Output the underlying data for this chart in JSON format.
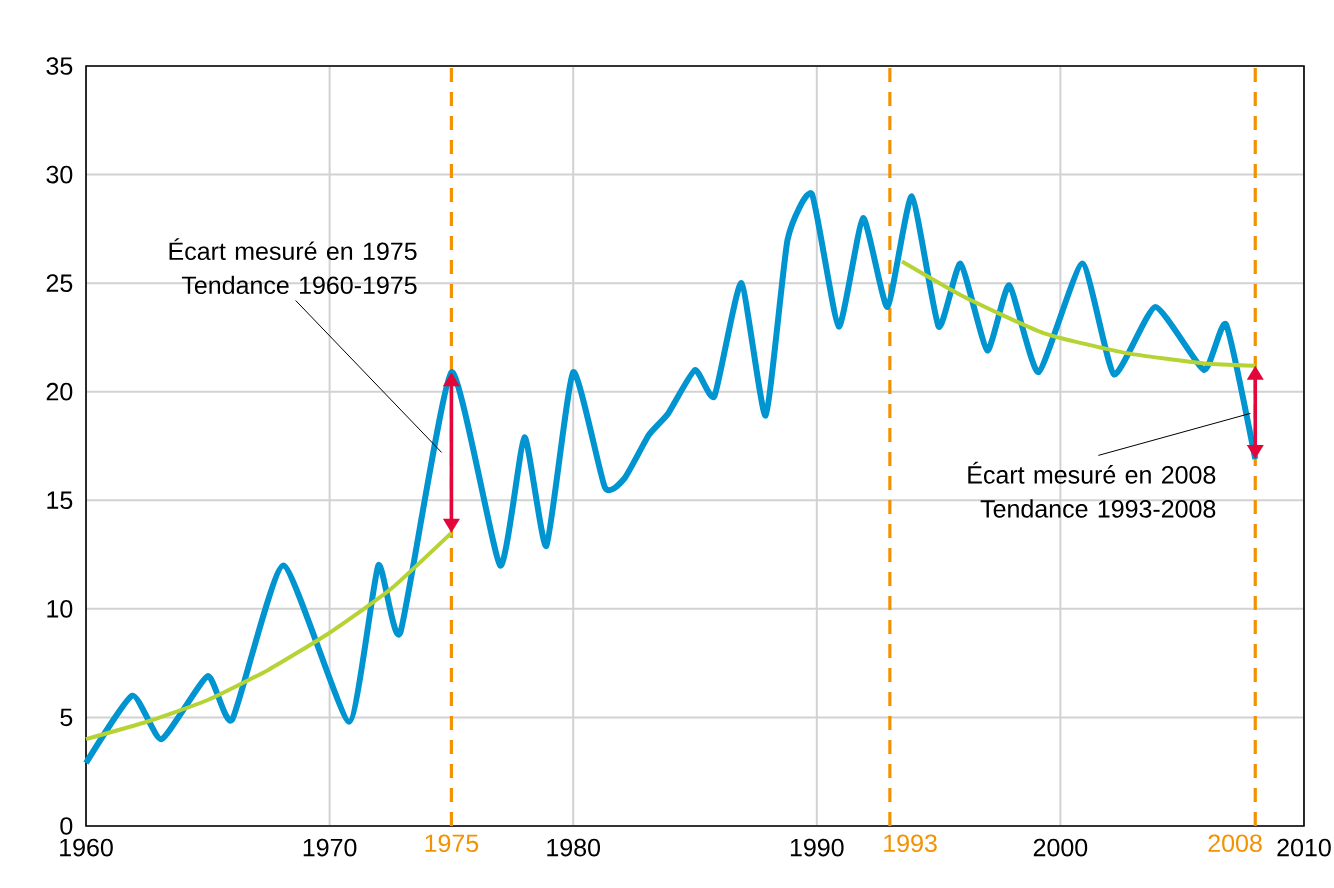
{
  "chart_data": {
    "type": "line",
    "xlim": [
      1960,
      2010
    ],
    "ylim": [
      0,
      35
    ],
    "xticks": [
      1960,
      1970,
      1980,
      1990,
      2000,
      2010
    ],
    "yticks": [
      0,
      5,
      10,
      15,
      20,
      25,
      30,
      35
    ],
    "grid": true,
    "series": [
      {
        "color": "#0095d0",
        "x": [
          1960,
          1961.9,
          1963.1,
          1965.0,
          1966.0,
          1968.1,
          1970.8,
          1972.0,
          1972.9,
          1975,
          1977.0,
          1978.0,
          1978.9,
          1980.0,
          1981.3,
          1982.1,
          1983.1,
          1983.9,
          1985.0,
          1985.8,
          1986.9,
          1987.9,
          1988.8,
          1989.8,
          1990.9,
          1991.9,
          1992.9,
          1993.9,
          1995.0,
          1995.9,
          1997.0,
          1997.9,
          1999.1,
          2000.9,
          2002.2,
          2003.9,
          2005.9,
          2006.8,
          2008
        ],
        "values": [
          2.9,
          6,
          4,
          6.9,
          4.9,
          12,
          4.8,
          12,
          8.9,
          20.9,
          12,
          17.9,
          12.9,
          20.9,
          15.6,
          16,
          18,
          19,
          21,
          19.8,
          25,
          18.9,
          27,
          29.1,
          23,
          28,
          23.9,
          29,
          23,
          25.9,
          21.9,
          24.9,
          20.9,
          25.9,
          20.8,
          23.9,
          21,
          23.1,
          16.9
        ]
      },
      {
        "color": "#b5d334",
        "x": [
          1960,
          1962.5,
          1965,
          1967.5,
          1970,
          1972.5,
          1975
        ],
        "values": [
          4.0,
          4.8,
          5.8,
          7.2,
          8.9,
          10.9,
          13.5
        ]
      },
      {
        "color": "#b5d334",
        "x": [
          1993.5,
          1996,
          1999.3,
          2002.6,
          2005.9,
          2008
        ],
        "values": [
          26,
          24.4,
          22.7,
          21.8,
          21.3,
          21.2
        ]
      }
    ],
    "ref_lines": [
      {
        "axis": "x",
        "value": 1975,
        "label": "1975",
        "color": "#f39200",
        "line_style": "dashed"
      },
      {
        "axis": "x",
        "value": 1993,
        "label": "1993",
        "color": "#f39200",
        "line_style": "dashed"
      },
      {
        "axis": "x",
        "value": 2008,
        "label": "2008",
        "color": "#f39200",
        "line_style": "dashed"
      }
    ],
    "annotations": [
      {
        "text": "Écart mesuré en 1975 Tendance 1960-1975",
        "x": 1974.6,
        "y": 17.2
      },
      {
        "text": "Écart mesuré en 2008 Tendance 1993-2008",
        "x": 2007.8,
        "y": 19.0
      }
    ]
  }
}
